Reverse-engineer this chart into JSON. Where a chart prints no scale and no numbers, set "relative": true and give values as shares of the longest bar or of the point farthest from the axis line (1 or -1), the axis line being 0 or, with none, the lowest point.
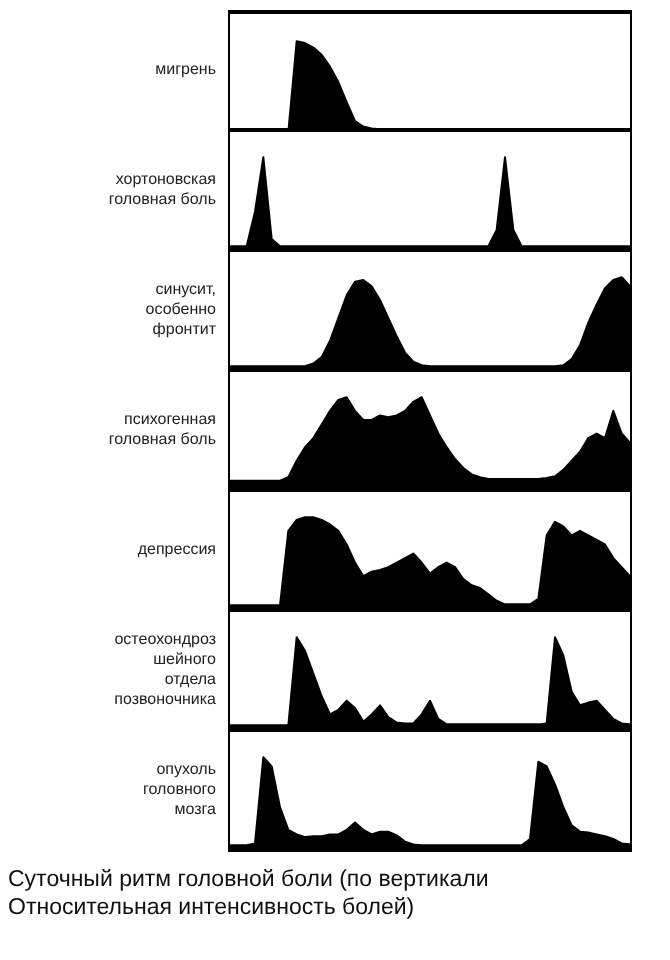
{
  "chart_data": [
    {
      "type": "area",
      "relative": true,
      "ylabel": "мигрень",
      "color": "#000000",
      "categories": [
        null,
        null,
        null,
        null,
        null,
        null,
        null,
        null,
        null,
        null,
        null,
        null,
        null,
        null,
        null,
        null,
        null,
        null,
        null,
        null,
        null,
        null,
        null,
        null,
        null,
        null,
        null,
        null,
        null,
        null,
        null,
        null,
        null,
        null,
        null,
        null,
        null,
        null,
        null,
        null,
        null,
        null,
        null,
        null,
        null,
        null,
        null,
        null,
        null
      ],
      "values": [
        0,
        0,
        0,
        0,
        0,
        0,
        0,
        0,
        1,
        0.98,
        0.93,
        0.85,
        0.72,
        0.55,
        0.33,
        0.12,
        0.06,
        0.04,
        0.03,
        0.02,
        0.02,
        0.02,
        0.02,
        0.02,
        0.02,
        0.02,
        0.02,
        0.02,
        0.02,
        0.02,
        0.02,
        0.02,
        0.02,
        0.02,
        0.02,
        0.02,
        0.02,
        0.02,
        0.02,
        0.02,
        0.02,
        0.02,
        0.02,
        0.02,
        0.02,
        0.02,
        0.02,
        0.02,
        0.02
      ]
    },
    {
      "type": "area",
      "relative": true,
      "ylabel": "хортоновская\nголовная боль",
      "color": "#000000",
      "categories": [
        null,
        null,
        null,
        null,
        null,
        null,
        null,
        null,
        null,
        null,
        null,
        null,
        null,
        null,
        null,
        null,
        null,
        null,
        null,
        null,
        null,
        null,
        null,
        null,
        null,
        null,
        null,
        null,
        null,
        null,
        null,
        null,
        null,
        null,
        null,
        null,
        null,
        null,
        null,
        null,
        null,
        null,
        null,
        null,
        null,
        null,
        null,
        null,
        null
      ],
      "values": [
        0.02,
        0.02,
        0.02,
        0.4,
        1,
        0.1,
        0.02,
        0.02,
        0.02,
        0.02,
        0.02,
        0.02,
        0.02,
        0.02,
        0.02,
        0.02,
        0.02,
        0.02,
        0.02,
        0.02,
        0.02,
        0.02,
        0.02,
        0.02,
        0.02,
        0.02,
        0.02,
        0.02,
        0.02,
        0.02,
        0.02,
        0.02,
        0.2,
        1,
        0.2,
        0.02,
        0.02,
        0.02,
        0.02,
        0.02,
        0.02,
        0.02,
        0.02,
        0.02,
        0.02,
        0.02,
        0.02,
        0.02,
        0.02
      ]
    },
    {
      "type": "area",
      "relative": true,
      "ylabel": "синусит,\nособенно\nфронтит",
      "color": "#000000",
      "categories": [
        null,
        null,
        null,
        null,
        null,
        null,
        null,
        null,
        null,
        null,
        null,
        null,
        null,
        null,
        null,
        null,
        null,
        null,
        null,
        null,
        null,
        null,
        null,
        null,
        null,
        null,
        null,
        null,
        null,
        null,
        null,
        null,
        null,
        null,
        null,
        null,
        null,
        null,
        null,
        null,
        null,
        null,
        null,
        null,
        null,
        null,
        null,
        null,
        null
      ],
      "values": [
        0.02,
        0.02,
        0.02,
        0.02,
        0.02,
        0.02,
        0.02,
        0.02,
        0.02,
        0.02,
        0.05,
        0.12,
        0.3,
        0.55,
        0.8,
        0.95,
        0.97,
        0.9,
        0.75,
        0.55,
        0.35,
        0.17,
        0.07,
        0.03,
        0.02,
        0.02,
        0.02,
        0.02,
        0.02,
        0.02,
        0.02,
        0.02,
        0.02,
        0.02,
        0.02,
        0.02,
        0.02,
        0.02,
        0.02,
        0.02,
        0.03,
        0.1,
        0.25,
        0.5,
        0.7,
        0.88,
        0.97,
        1,
        0.9
      ]
    },
    {
      "type": "area",
      "relative": true,
      "ylabel": "психогенная\nголовная боль",
      "color": "#000000",
      "categories": [
        null,
        null,
        null,
        null,
        null,
        null,
        null,
        null,
        null,
        null,
        null,
        null,
        null,
        null,
        null,
        null,
        null,
        null,
        null,
        null,
        null,
        null,
        null,
        null,
        null,
        null,
        null,
        null,
        null,
        null,
        null,
        null,
        null,
        null,
        null,
        null,
        null,
        null,
        null,
        null,
        null,
        null,
        null,
        null,
        null,
        null,
        null,
        null,
        null
      ],
      "values": [
        0.08,
        0.08,
        0.08,
        0.08,
        0.08,
        0.08,
        0.08,
        0.12,
        0.3,
        0.45,
        0.55,
        0.7,
        0.85,
        0.97,
        1,
        0.85,
        0.75,
        0.75,
        0.8,
        0.78,
        0.8,
        0.85,
        0.95,
        1,
        0.8,
        0.6,
        0.45,
        0.32,
        0.22,
        0.15,
        0.12,
        0.1,
        0.1,
        0.1,
        0.1,
        0.1,
        0.1,
        0.1,
        0.11,
        0.13,
        0.2,
        0.3,
        0.4,
        0.55,
        0.6,
        0.55,
        0.85,
        0.6,
        0.5
      ]
    },
    {
      "type": "area",
      "relative": true,
      "ylabel": "депрессия",
      "color": "#000000",
      "categories": [
        null,
        null,
        null,
        null,
        null,
        null,
        null,
        null,
        null,
        null,
        null,
        null,
        null,
        null,
        null,
        null,
        null,
        null,
        null,
        null,
        null,
        null,
        null,
        null,
        null,
        null,
        null,
        null,
        null,
        null,
        null,
        null,
        null,
        null,
        null,
        null,
        null,
        null,
        null,
        null,
        null,
        null,
        null,
        null,
        null,
        null,
        null,
        null,
        null
      ],
      "values": [
        0.03,
        0.03,
        0.03,
        0.03,
        0.03,
        0.03,
        0.03,
        0.85,
        0.97,
        1,
        1,
        0.97,
        0.92,
        0.85,
        0.7,
        0.5,
        0.35,
        0.4,
        0.42,
        0.45,
        0.5,
        0.55,
        0.6,
        0.5,
        0.38,
        0.45,
        0.5,
        0.45,
        0.32,
        0.25,
        0.22,
        0.15,
        0.08,
        0.04,
        0.04,
        0.04,
        0.04,
        0.1,
        0.8,
        0.95,
        0.9,
        0.8,
        0.85,
        0.8,
        0.75,
        0.7,
        0.55,
        0.45,
        0.35
      ]
    },
    {
      "type": "area",
      "relative": true,
      "ylabel": "остеохондроз\nшейного\nотдела\nпозвоночника",
      "color": "#000000",
      "categories": [
        null,
        null,
        null,
        null,
        null,
        null,
        null,
        null,
        null,
        null,
        null,
        null,
        null,
        null,
        null,
        null,
        null,
        null,
        null,
        null,
        null,
        null,
        null,
        null,
        null,
        null,
        null,
        null,
        null,
        null,
        null,
        null,
        null,
        null,
        null,
        null,
        null,
        null,
        null,
        null,
        null,
        null,
        null,
        null,
        null,
        null,
        null,
        null,
        null
      ],
      "values": [
        0.03,
        0.03,
        0.03,
        0.03,
        0.03,
        0.03,
        0.03,
        0.03,
        1,
        0.85,
        0.6,
        0.35,
        0.15,
        0.2,
        0.3,
        0.22,
        0.07,
        0.15,
        0.25,
        0.12,
        0.06,
        0.05,
        0.05,
        0.15,
        0.3,
        0.1,
        0.04,
        0.04,
        0.04,
        0.04,
        0.04,
        0.04,
        0.04,
        0.04,
        0.04,
        0.04,
        0.04,
        0.04,
        0.05,
        1,
        0.8,
        0.4,
        0.25,
        0.28,
        0.3,
        0.2,
        0.1,
        0.05,
        0.04
      ]
    },
    {
      "type": "area",
      "relative": true,
      "ylabel": "опухоль\nголовного\nмозга",
      "color": "#000000",
      "categories": [
        null,
        null,
        null,
        null,
        null,
        null,
        null,
        null,
        null,
        null,
        null,
        null,
        null,
        null,
        null,
        null,
        null,
        null,
        null,
        null,
        null,
        null,
        null,
        null,
        null,
        null,
        null,
        null,
        null,
        null,
        null,
        null,
        null,
        null,
        null,
        null,
        null,
        null,
        null,
        null,
        null,
        null,
        null,
        null,
        null,
        null,
        null,
        null,
        null
      ],
      "values": [
        0.03,
        0.03,
        0.03,
        0.05,
        1,
        0.9,
        0.45,
        0.2,
        0.15,
        0.12,
        0.13,
        0.13,
        0.15,
        0.15,
        0.2,
        0.28,
        0.2,
        0.15,
        0.18,
        0.18,
        0.14,
        0.07,
        0.04,
        0.03,
        0.03,
        0.03,
        0.03,
        0.03,
        0.03,
        0.03,
        0.03,
        0.03,
        0.03,
        0.03,
        0.03,
        0.03,
        0.1,
        0.95,
        0.9,
        0.7,
        0.45,
        0.25,
        0.18,
        0.17,
        0.15,
        0.13,
        0.1,
        0.05,
        0.04
      ],
      "annotations": [
        "Суточный ритм головной боли (по вертикали",
        "Относительная интенсивность болей)"
      ]
    }
  ]
}
